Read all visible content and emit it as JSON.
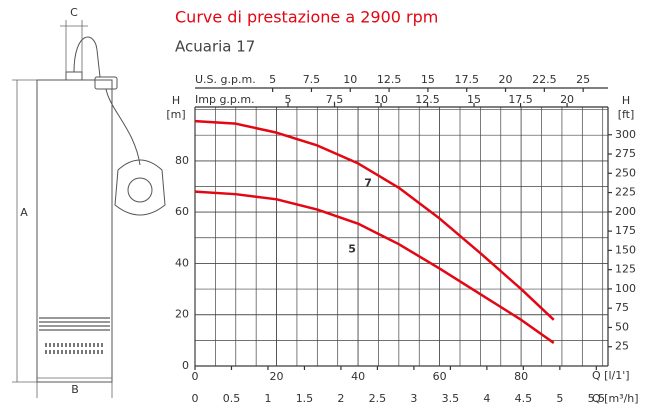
{
  "chart_data": {
    "type": "line",
    "title": "Curve di prestazione a 2900 rpm",
    "subtitle": "Acuaria 17",
    "x": [
      0,
      10,
      20,
      30,
      40,
      50,
      60,
      70,
      80,
      88
    ],
    "series": [
      {
        "name": "7",
        "color": "#e30613",
        "values": [
          95.5,
          94.5,
          91,
          86,
          79,
          69.5,
          57.5,
          44,
          30,
          18
        ]
      },
      {
        "name": "5",
        "color": "#e30613",
        "values": [
          68,
          67,
          65,
          61,
          55.5,
          47.5,
          38,
          28,
          18,
          9
        ]
      }
    ],
    "xlabel": "Q [l/1']",
    "xlim": [
      0,
      101.3
    ],
    "xticks": [
      0,
      20,
      40,
      60,
      80
    ],
    "x2label": "Q [m³/h]",
    "x2lim": [
      0,
      5.66
    ],
    "x2ticks": [
      0,
      0.5,
      1,
      1.5,
      2,
      2.5,
      3,
      3.5,
      4,
      4.5,
      5,
      5.5
    ],
    "x3label": "U.S. g.p.m.",
    "x3lim": [
      0,
      26.6
    ],
    "x3ticks": [
      5,
      7.5,
      10,
      12.5,
      15,
      17.5,
      20,
      22.5,
      25
    ],
    "x4label": "Imp g.p.m.",
    "x4lim": [
      0,
      22.2
    ],
    "x4ticks": [
      5,
      7.5,
      10,
      12.5,
      15,
      17.5,
      20
    ],
    "ylabel": [
      "H",
      "[m]"
    ],
    "ylim": [
      0,
      101
    ],
    "yticks": [
      0,
      20,
      40,
      60,
      80
    ],
    "y2label": [
      "H",
      "[ft]"
    ],
    "y2lim": [
      0,
      336
    ],
    "y2ticks": [
      25,
      50,
      75,
      100,
      125,
      150,
      175,
      200,
      225,
      250,
      275,
      300
    ],
    "grid": true
  },
  "pump_drawing": {
    "dimension_labels": [
      "C",
      "A",
      "B"
    ]
  }
}
